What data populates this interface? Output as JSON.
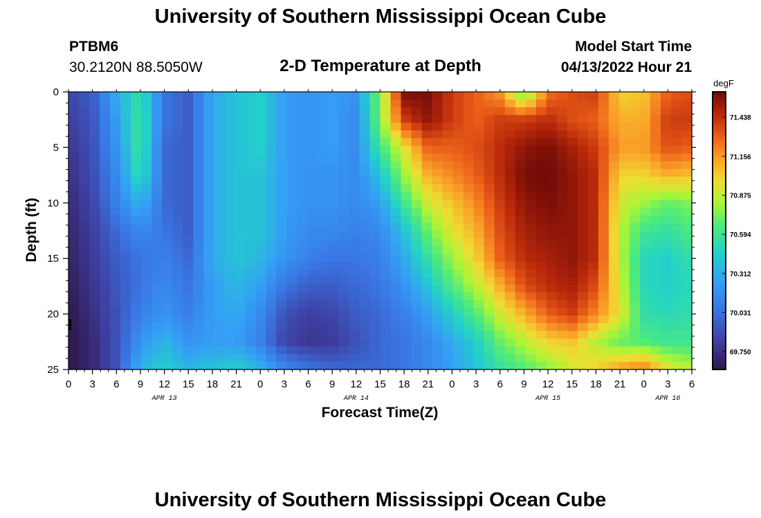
{
  "title": "University of Southern Mississippi Ocean Cube",
  "footer_title": "University of Southern Mississippi Ocean Cube",
  "station": {
    "id": "PTBM6",
    "coordinates": "30.2120N  88.5050W"
  },
  "model_start": {
    "label": "Model Start Time",
    "value": "04/13/2022 Hour 21"
  },
  "chart_data": {
    "type": "heatmap",
    "title": "2-D Temperature at Depth",
    "xlabel": "Forecast Time(Z)",
    "ylabel": "Depth (ft)",
    "x_tick_labels": [
      "0",
      "3",
      "6",
      "9",
      "12",
      "15",
      "18",
      "21",
      "0",
      "3",
      "6",
      "9",
      "12",
      "15",
      "18",
      "21",
      "0",
      "3",
      "6",
      "9",
      "12",
      "15",
      "18",
      "21",
      "0",
      "3",
      "6"
    ],
    "x_range_hours": [
      0,
      78
    ],
    "date_labels": [
      {
        "text": "APR 13",
        "hour": 12
      },
      {
        "text": "APR 14",
        "hour": 36
      },
      {
        "text": "APR 15",
        "hour": 60
      },
      {
        "text": "APR 16",
        "hour": 75
      }
    ],
    "y_ticks": [
      0,
      5,
      10,
      15,
      20,
      25
    ],
    "ylim": [
      0,
      25
    ],
    "colorbar": {
      "unit": "degF",
      "tick_labels": [
        "71.438",
        "71.156",
        "70.875",
        "70.594",
        "70.312",
        "70.031",
        "69.750"
      ],
      "min": 69.62,
      "max": 71.62
    },
    "temperature_field": {
      "x_hours": [
        0,
        3,
        6,
        9,
        12,
        15,
        18,
        21,
        24,
        27,
        30,
        33,
        36,
        39,
        42,
        45,
        48,
        51,
        54,
        57,
        60,
        63,
        66,
        69,
        72,
        75,
        78
      ],
      "depths_ft": [
        0,
        2.5,
        5,
        7.5,
        10,
        12.5,
        15,
        17.5,
        20,
        22.5,
        25
      ],
      "values_degF": [
        [
          69.85,
          69.95,
          70.3,
          70.55,
          70.05,
          69.95,
          70.3,
          70.4,
          70.45,
          70.25,
          70.2,
          70.25,
          70.2,
          70.75,
          71.6,
          71.6,
          71.4,
          71.3,
          71.15,
          70.65,
          71.25,
          71.35,
          71.4,
          71.0,
          71.05,
          71.3,
          71.35
        ],
        [
          69.82,
          69.92,
          70.25,
          70.6,
          70.05,
          69.95,
          70.3,
          70.4,
          70.45,
          70.25,
          70.2,
          70.25,
          70.15,
          70.75,
          71.4,
          71.55,
          71.4,
          71.3,
          71.4,
          71.4,
          71.45,
          71.35,
          71.3,
          71.1,
          71.1,
          71.4,
          71.4
        ],
        [
          69.78,
          69.9,
          70.2,
          70.6,
          70.0,
          69.95,
          70.3,
          70.4,
          70.45,
          70.25,
          70.2,
          70.25,
          70.15,
          70.6,
          70.95,
          71.3,
          71.3,
          71.35,
          71.45,
          71.55,
          71.6,
          71.5,
          71.4,
          71.15,
          71.15,
          71.35,
          71.3
        ],
        [
          69.75,
          69.88,
          70.15,
          70.55,
          70.0,
          69.95,
          70.3,
          70.4,
          70.4,
          70.25,
          70.2,
          70.2,
          70.15,
          70.4,
          70.8,
          71.1,
          71.2,
          71.3,
          71.45,
          71.6,
          71.62,
          71.55,
          71.45,
          71.0,
          71.0,
          71.1,
          71.05
        ],
        [
          69.72,
          69.85,
          70.1,
          70.35,
          70.0,
          69.95,
          70.3,
          70.4,
          70.4,
          70.25,
          70.2,
          70.2,
          70.15,
          70.25,
          70.6,
          70.9,
          71.05,
          71.2,
          71.4,
          71.55,
          71.6,
          71.55,
          71.45,
          70.9,
          70.8,
          70.7,
          70.75
        ],
        [
          69.7,
          69.82,
          70.0,
          70.15,
          70.05,
          69.95,
          70.3,
          70.4,
          70.4,
          70.25,
          70.15,
          70.15,
          70.1,
          70.15,
          70.4,
          70.7,
          70.95,
          71.1,
          71.35,
          71.5,
          71.55,
          71.55,
          71.45,
          70.85,
          70.6,
          70.55,
          70.65
        ],
        [
          69.68,
          69.8,
          69.95,
          70.05,
          70.1,
          70.0,
          70.3,
          70.4,
          70.35,
          70.2,
          70.1,
          70.05,
          70.05,
          70.1,
          70.3,
          70.55,
          70.8,
          71.0,
          71.3,
          71.45,
          71.5,
          71.55,
          71.45,
          70.85,
          70.5,
          70.45,
          70.55
        ],
        [
          69.65,
          69.78,
          69.92,
          70.05,
          70.15,
          70.05,
          70.25,
          70.35,
          70.25,
          70.05,
          69.95,
          69.95,
          70.0,
          70.05,
          70.2,
          70.4,
          70.65,
          70.85,
          71.1,
          71.35,
          71.45,
          71.5,
          71.35,
          70.9,
          70.5,
          70.45,
          70.5
        ],
        [
          69.62,
          69.75,
          69.9,
          70.1,
          70.2,
          70.1,
          70.25,
          70.3,
          70.15,
          69.9,
          69.82,
          69.85,
          69.95,
          70.0,
          70.1,
          70.25,
          70.45,
          70.65,
          70.9,
          71.1,
          71.3,
          71.4,
          71.2,
          70.95,
          70.55,
          70.5,
          70.55
        ],
        [
          69.62,
          69.72,
          69.9,
          70.2,
          70.35,
          70.2,
          70.25,
          70.25,
          70.1,
          69.85,
          69.78,
          69.8,
          69.9,
          70.0,
          70.05,
          70.15,
          70.3,
          70.45,
          70.7,
          70.85,
          71.0,
          71.05,
          70.85,
          70.7,
          70.65,
          70.6,
          70.6
        ],
        [
          69.62,
          69.72,
          69.9,
          70.35,
          70.45,
          70.35,
          70.4,
          70.45,
          70.35,
          70.15,
          70.05,
          70.0,
          70.0,
          70.0,
          70.05,
          70.15,
          70.25,
          70.4,
          70.55,
          70.65,
          70.75,
          70.9,
          71.0,
          71.15,
          71.25,
          70.95,
          70.85
        ]
      ]
    }
  }
}
